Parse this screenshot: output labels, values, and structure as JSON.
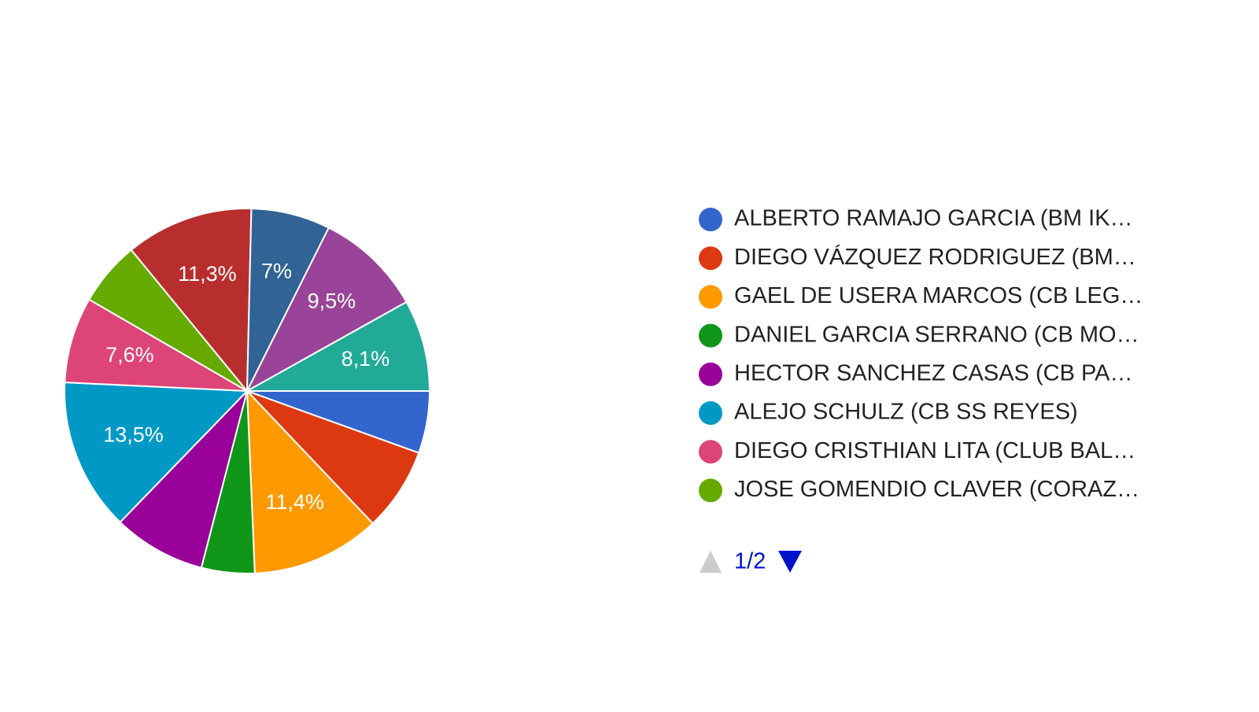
{
  "chart_data": {
    "type": "pie",
    "categories": [
      "ALBERTO RAMAJO GARCIA (BM IK…",
      "DIEGO VÁZQUEZ RODRIGUEZ (BM…",
      "GAEL DE USERA MARCOS (CB LEG…",
      "DANIEL GARCIA SERRANO (CB MO…",
      "HECTOR SANCHEZ CASAS (CB PA…",
      "ALEJO SCHULZ (CB SS REYES)",
      "DIEGO CRISTHIAN LITA (CLUB BAL…",
      "JOSE GOMENDIO CLAVER (CORAZ…",
      null,
      null,
      null,
      null
    ],
    "values": [
      5.5,
      7.4,
      11.4,
      4.7,
      8.2,
      13.5,
      7.6,
      5.7,
      11.3,
      7,
      9.5,
      8.1
    ],
    "value_labels": [
      null,
      null,
      "11,4%",
      null,
      null,
      "13,5%",
      "7,6%",
      null,
      "11,3%",
      "7%",
      "9,5%",
      "8,1%"
    ],
    "colors": [
      "#3366cc",
      "#dc3912",
      "#ff9900",
      "#109618",
      "#990099",
      "#0099c6",
      "#dd4477",
      "#66aa00",
      "#b82e2e",
      "#316395",
      "#994499",
      "#22aa99"
    ],
    "legend_page": "1/2"
  }
}
